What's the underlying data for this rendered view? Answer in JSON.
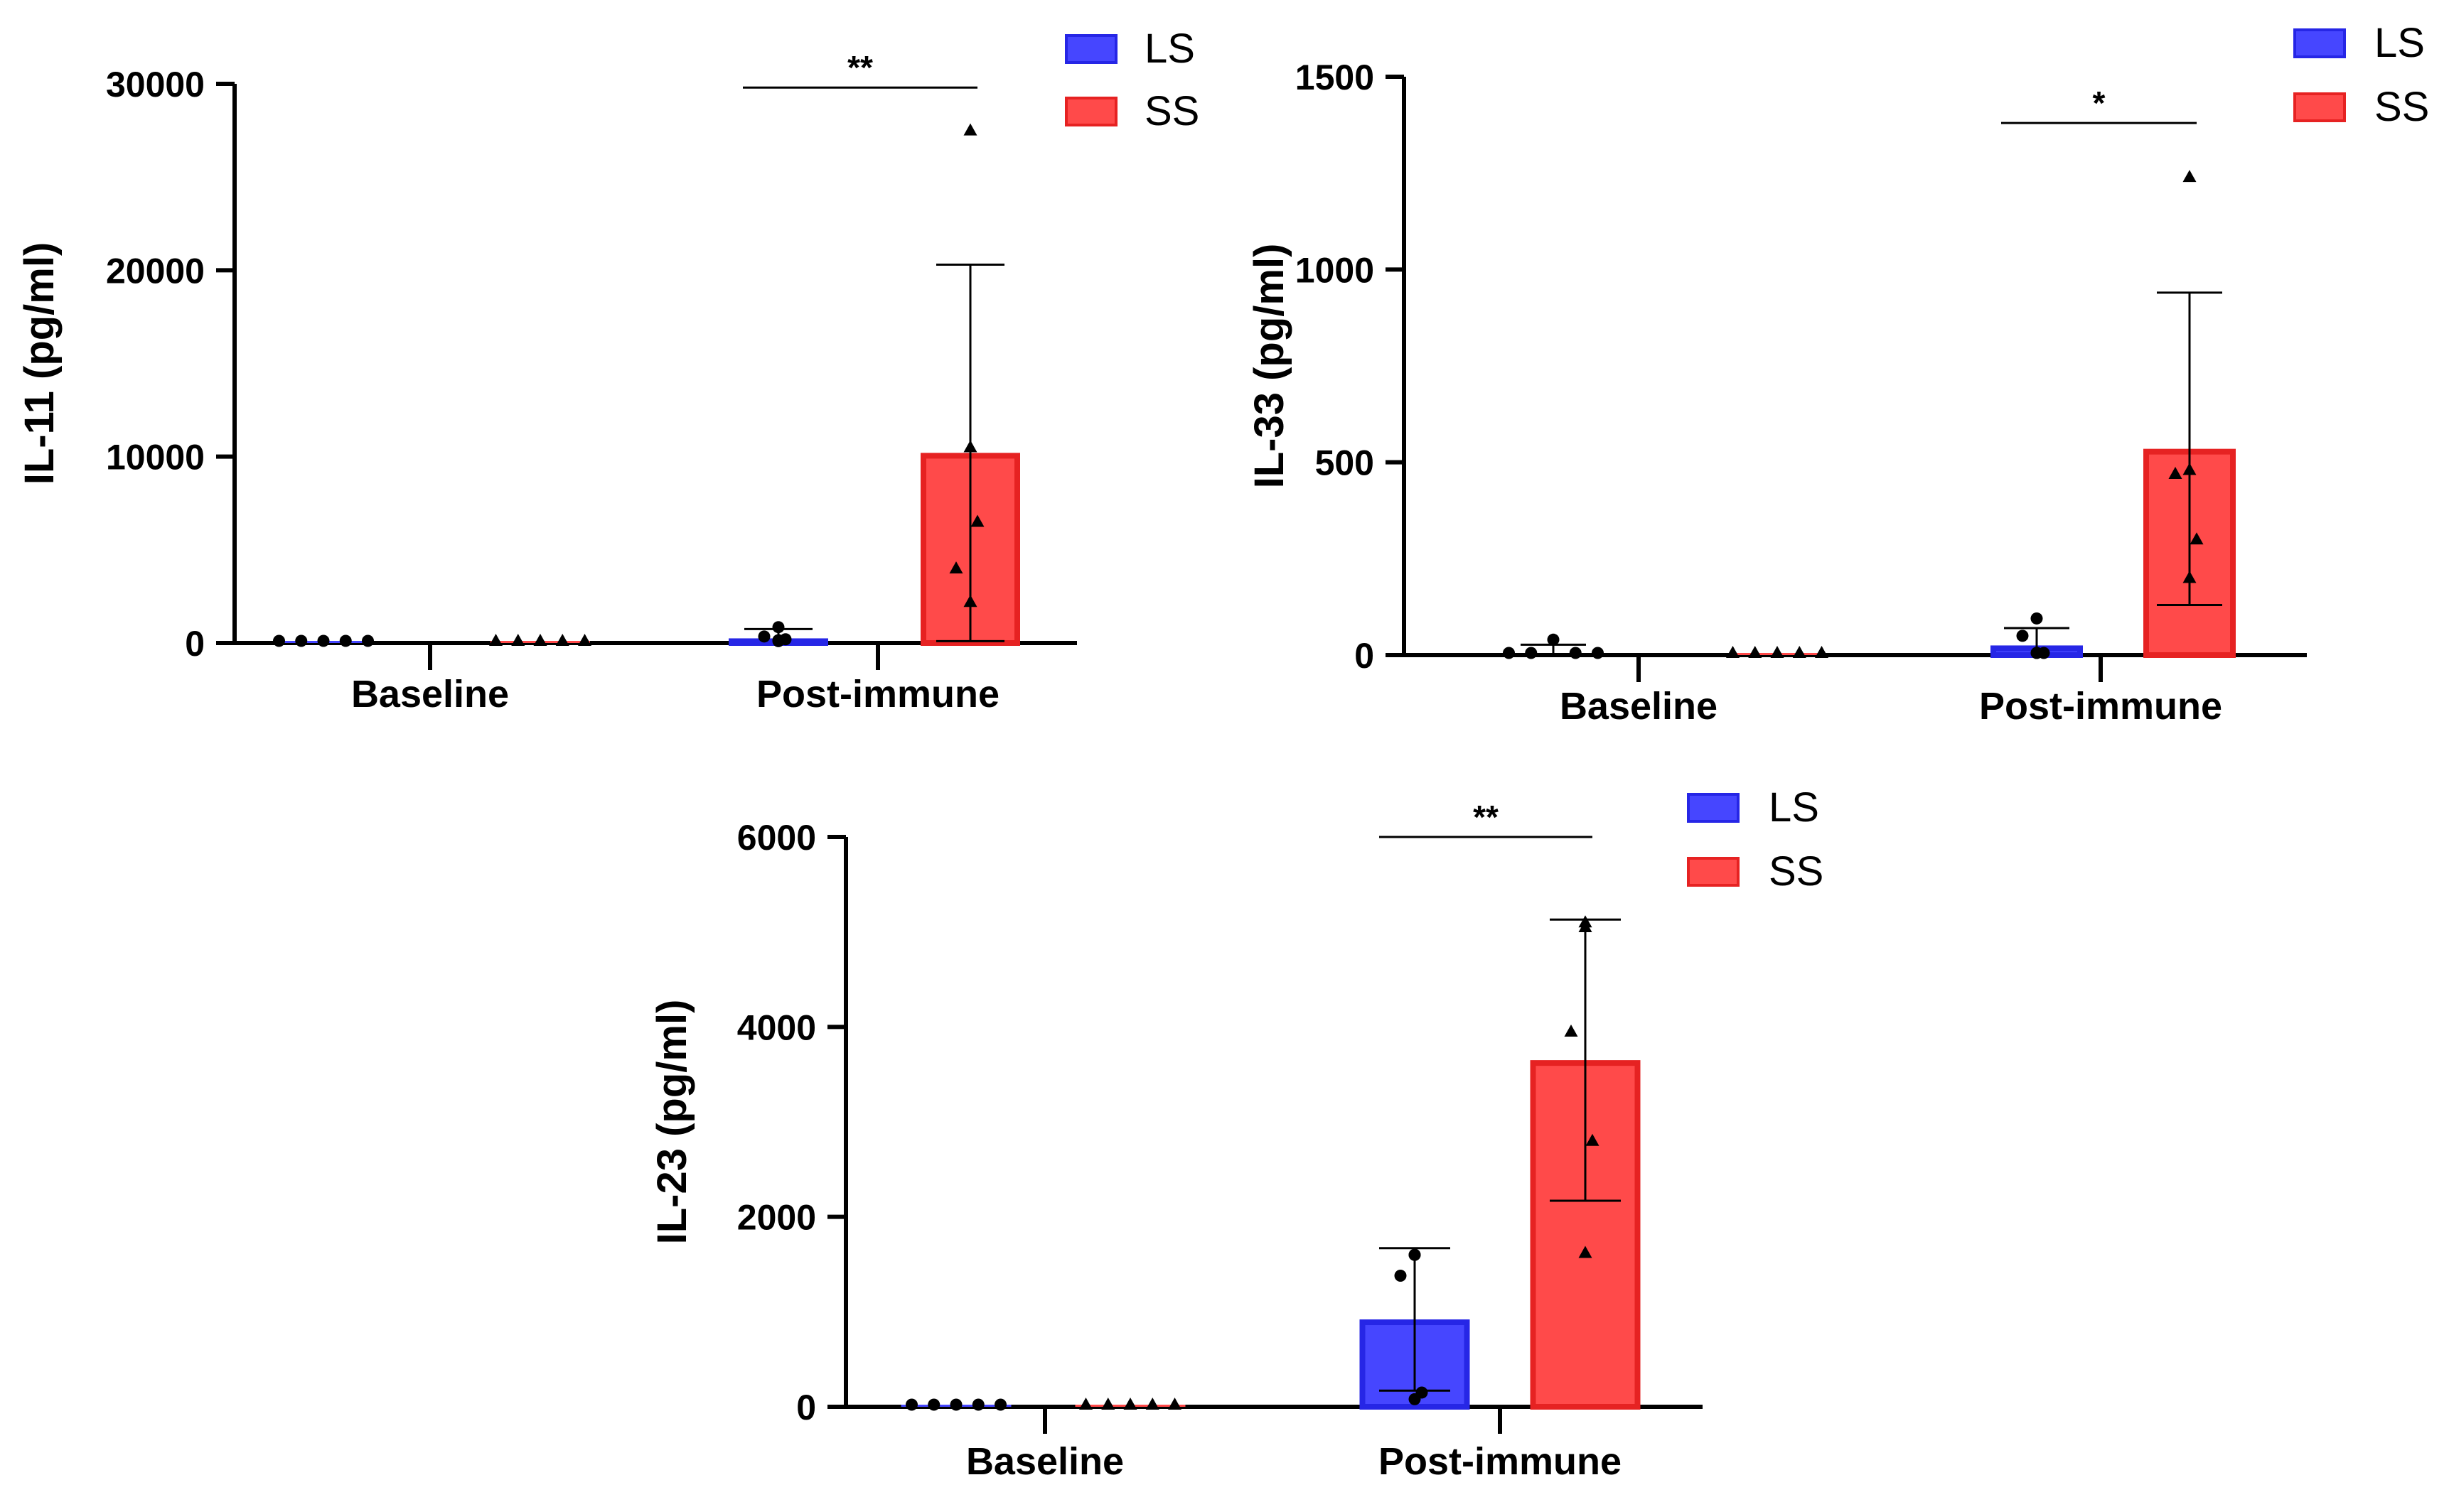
{
  "colors": {
    "LS_fill": "#4646ff",
    "LS_edge": "#2626e6",
    "SS_fill": "#ff4a4a",
    "SS_edge": "#e62222",
    "axis": "#000000"
  },
  "chart_data": [
    {
      "type": "bar",
      "categories": [
        "Baseline",
        "Post-immune"
      ],
      "ylabel": "IL-11 (pg/ml)",
      "ylim": [
        0,
        30000
      ],
      "yticks": [
        0,
        10000,
        20000,
        30000
      ],
      "ytick_labels": [
        "0",
        "10000",
        "20000",
        "30000"
      ],
      "legend": [
        "LS",
        "SS"
      ],
      "legend_position": "top-right",
      "series": [
        {
          "name": "LS",
          "values": [
            0,
            250
          ],
          "errors": [
            0,
            500
          ],
          "points": [
            [
              0,
              0,
              0,
              0,
              0
            ],
            [
              100,
              200,
              350,
              150,
              850
            ]
          ],
          "marker": "circle"
        },
        {
          "name": "SS",
          "values": [
            0,
            10200
          ],
          "errors": [
            0,
            10100
          ],
          "points": [
            [
              0,
              0,
              0,
              0,
              0
            ],
            [
              2200,
              6500,
              4000,
              10500,
              27500
            ]
          ],
          "marker": "triangle"
        }
      ],
      "significance": [
        {
          "category": 1,
          "label": "**",
          "y": 29800
        }
      ]
    },
    {
      "type": "bar",
      "categories": [
        "Baseline",
        "Post-immune"
      ],
      "ylabel": "IL-33 (pg/ml)",
      "ylim": [
        0,
        1500
      ],
      "yticks": [
        0,
        500,
        1000,
        1500
      ],
      "ytick_labels": [
        "0",
        "500",
        "1000",
        "1500"
      ],
      "legend": [
        "LS",
        "SS"
      ],
      "legend_position": "top-right",
      "series": [
        {
          "name": "LS",
          "values": [
            5,
            25
          ],
          "errors": [
            22,
            45
          ],
          "points": [
            [
              0,
              0,
              40,
              0,
              0
            ],
            [
              0,
              0,
              50,
              95,
              0
            ]
          ],
          "marker": "circle"
        },
        {
          "name": "SS",
          "values": [
            0,
            535
          ],
          "errors": [
            0,
            405
          ],
          "points": [
            [
              0,
              0,
              0,
              0,
              0
            ],
            [
              200,
              300,
              470,
              480,
              1240
            ]
          ],
          "marker": "triangle"
        }
      ],
      "significance": [
        {
          "category": 1,
          "label": "*",
          "y": 1380
        }
      ]
    },
    {
      "type": "bar",
      "categories": [
        "Baseline",
        "Post-immune"
      ],
      "ylabel": "IL-23 (pg/ml)",
      "ylim": [
        0,
        6000
      ],
      "yticks": [
        0,
        2000,
        4000,
        6000
      ],
      "ytick_labels": [
        "0",
        "2000",
        "4000",
        "6000"
      ],
      "legend": [
        "LS",
        "SS"
      ],
      "legend_position": "top-right",
      "series": [
        {
          "name": "LS",
          "values": [
            0,
            920
          ],
          "errors": [
            0,
            750
          ],
          "points": [
            [
              0,
              0,
              0,
              0,
              0
            ],
            [
              80,
              150,
              1380,
              1600,
              1600
            ]
          ],
          "marker": "circle"
        },
        {
          "name": "SS",
          "values": [
            0,
            3650
          ],
          "errors": [
            0,
            1480
          ],
          "points": [
            [
              0,
              0,
              0,
              0,
              0
            ],
            [
              1620,
              2800,
              3950,
              5100,
              5050
            ]
          ],
          "marker": "triangle"
        }
      ],
      "significance": [
        {
          "category": 1,
          "label": "**",
          "y": 6000
        }
      ]
    }
  ]
}
